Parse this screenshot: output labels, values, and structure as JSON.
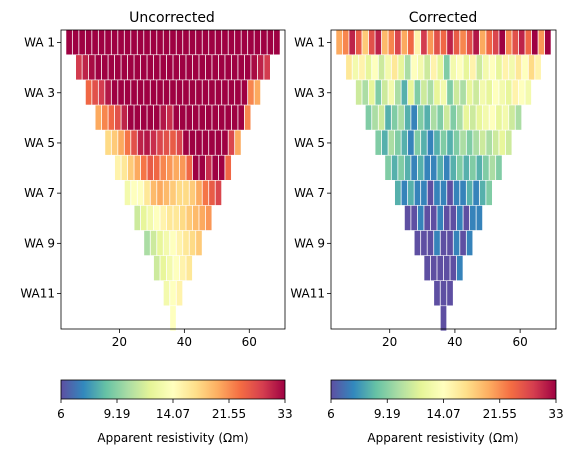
{
  "chart_data": [
    {
      "type": "heatmap",
      "title": "Uncorrected",
      "xlabel": "",
      "ylabel": "",
      "xlim": [
        2,
        71
      ],
      "x_ticks": [
        "20",
        "40",
        "60"
      ],
      "y_tick_labels": [
        "WA 1",
        "WA 3",
        "WA 5",
        "WA 7",
        "WA 9",
        "WA11"
      ],
      "levels": 12,
      "cell_values": [
        [
          33,
          33,
          33,
          33,
          33,
          33,
          33,
          33,
          33,
          33,
          33,
          33,
          33,
          33,
          33,
          33,
          33,
          33,
          33,
          33,
          33,
          33,
          33,
          33,
          33,
          33,
          33,
          33,
          33,
          33,
          33,
          33,
          33
        ],
        [
          28,
          30,
          32,
          33,
          33,
          33,
          33,
          33,
          33,
          33,
          33,
          33,
          33,
          33,
          33,
          33,
          33,
          33,
          33,
          33,
          33,
          33,
          33,
          33,
          33,
          33,
          33,
          32,
          30,
          28
        ],
        [
          24,
          26,
          28,
          31,
          33,
          33,
          33,
          33,
          33,
          33,
          33,
          33,
          33,
          33,
          33,
          33,
          33,
          33,
          33,
          33,
          33,
          33,
          33,
          33,
          33,
          22,
          20
        ],
        [
          20,
          22,
          24,
          26,
          30,
          33,
          33,
          33,
          33,
          33,
          31,
          29,
          33,
          33,
          33,
          33,
          33,
          33,
          33,
          33,
          33,
          33,
          33,
          22
        ],
        [
          17,
          18,
          20,
          23,
          26,
          30,
          31,
          29,
          27,
          26,
          25,
          27,
          33,
          33,
          33,
          33,
          33,
          33,
          33,
          27,
          20
        ],
        [
          15,
          16,
          18,
          20,
          23,
          25,
          24,
          22,
          21,
          20,
          21,
          24,
          33,
          33,
          29,
          33,
          33,
          24
        ],
        [
          13,
          14,
          14,
          16,
          19,
          20,
          19,
          18,
          17,
          17,
          18,
          20,
          23,
          25,
          27
        ],
        [
          11,
          12,
          13,
          14,
          15,
          16,
          16,
          17,
          18,
          19,
          20,
          21
        ],
        [
          10,
          11,
          12,
          13,
          14,
          15,
          16,
          17,
          18
        ],
        [
          11,
          12,
          13,
          14,
          15,
          16
        ],
        [
          13,
          14,
          15
        ],
        [
          14
        ]
      ]
    },
    {
      "type": "heatmap",
      "title": "Corrected",
      "xlabel": "",
      "ylabel": "",
      "xlim": [
        2,
        71
      ],
      "x_ticks": [
        "20",
        "40",
        "60"
      ],
      "y_tick_labels": [
        "WA 1",
        "WA 3",
        "WA 5",
        "WA 7",
        "WA 9",
        "WA11"
      ],
      "levels": 12,
      "cell_values": [
        [
          20,
          22,
          30,
          25,
          18,
          26,
          30,
          19,
          22,
          27,
          20,
          24,
          15,
          28,
          21,
          26,
          24,
          30,
          25,
          22,
          26,
          31,
          20,
          24,
          27,
          33,
          22,
          26,
          30,
          24,
          33,
          21,
          33
        ],
        [
          16,
          13,
          15,
          12,
          14,
          11,
          13,
          16,
          12,
          10,
          14,
          13,
          11,
          15,
          12,
          9,
          13,
          14,
          12,
          15,
          11,
          13,
          14,
          12,
          15,
          13,
          16,
          14,
          17,
          15
        ],
        [
          11,
          10,
          12,
          9,
          11,
          13,
          10,
          8,
          12,
          9,
          11,
          10,
          12,
          13,
          9,
          11,
          10,
          12,
          11,
          13,
          12,
          14,
          13,
          12,
          15,
          14,
          13
        ],
        [
          9,
          10,
          11,
          8,
          9,
          10,
          8,
          7,
          9,
          8,
          10,
          9,
          11,
          9,
          10,
          12,
          11,
          12,
          13,
          14,
          12,
          13,
          11,
          10
        ],
        [
          9,
          8,
          10,
          9,
          8,
          7,
          9,
          8,
          7,
          8,
          9,
          8,
          9,
          10,
          9,
          10,
          11,
          10,
          11,
          12,
          11
        ],
        [
          9,
          8,
          9,
          8,
          7,
          8,
          7,
          7,
          8,
          7,
          8,
          9,
          8,
          9,
          8,
          9,
          10,
          9
        ],
        [
          8,
          7,
          8,
          7,
          7,
          6,
          7,
          7,
          6,
          7,
          7,
          8,
          7,
          8,
          9
        ],
        [
          6,
          6,
          7,
          6,
          6,
          7,
          6,
          6,
          7,
          6,
          7,
          7
        ],
        [
          6,
          6,
          6,
          7,
          6,
          6,
          7,
          6,
          7
        ],
        [
          6,
          6,
          6,
          6,
          6,
          7
        ],
        [
          6,
          6,
          6
        ],
        [
          6
        ]
      ]
    }
  ],
  "colorbars": [
    {
      "min": 6,
      "max": 33,
      "tick_labels": [
        "6",
        "9.19",
        "14.07",
        "21.55",
        "33"
      ],
      "label": "Apparent resistivity (Ωm)"
    },
    {
      "min": 6,
      "max": 33,
      "tick_labels": [
        "6",
        "9.19",
        "14.07",
        "21.55",
        "33"
      ],
      "label": "Apparent resistivity (Ωm)"
    }
  ],
  "colormap": [
    "#5e4fa2",
    "#3288bd",
    "#66c2a5",
    "#abdda4",
    "#e6f598",
    "#ffffbf",
    "#fee08b",
    "#fdae61",
    "#f46d43",
    "#d53e4f",
    "#9e0142"
  ]
}
